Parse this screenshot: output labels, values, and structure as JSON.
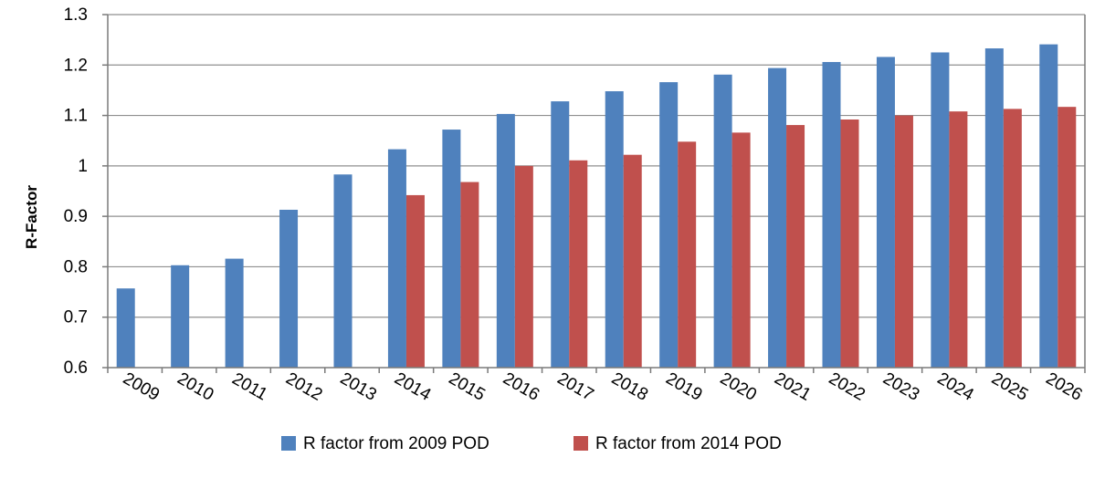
{
  "chart_data": {
    "type": "bar",
    "title": "",
    "xlabel": "",
    "ylabel": "R-Factor",
    "ylim": [
      0.6,
      1.3
    ],
    "yticks": [
      0.6,
      0.7,
      0.8,
      0.9,
      1,
      1.1,
      1.2,
      1.3
    ],
    "ytick_labels": [
      "0.6",
      "0.7",
      "0.8",
      "0.9",
      "1",
      "1.1",
      "1.2",
      "1.3"
    ],
    "grid": true,
    "legend_position": "bottom",
    "categories": [
      "2009",
      "2010",
      "2011",
      "2012",
      "2013",
      "2014",
      "2015",
      "2016",
      "2017",
      "2018",
      "2019",
      "2020",
      "2021",
      "2022",
      "2023",
      "2024",
      "2025",
      "2026"
    ],
    "series": [
      {
        "name": "R factor from 2009 POD",
        "color": "#4f81bd",
        "values": [
          0.757,
          0.803,
          0.816,
          0.913,
          0.983,
          1.033,
          1.072,
          1.103,
          1.128,
          1.148,
          1.166,
          1.181,
          1.194,
          1.206,
          1.216,
          1.225,
          1.233,
          1.241
        ]
      },
      {
        "name": "R factor from 2014 POD",
        "color": "#c0504d",
        "values": [
          null,
          null,
          null,
          null,
          null,
          0.942,
          0.968,
          1.0,
          1.011,
          1.022,
          1.048,
          1.066,
          1.081,
          1.092,
          1.1,
          1.108,
          1.113,
          1.117
        ]
      }
    ]
  }
}
